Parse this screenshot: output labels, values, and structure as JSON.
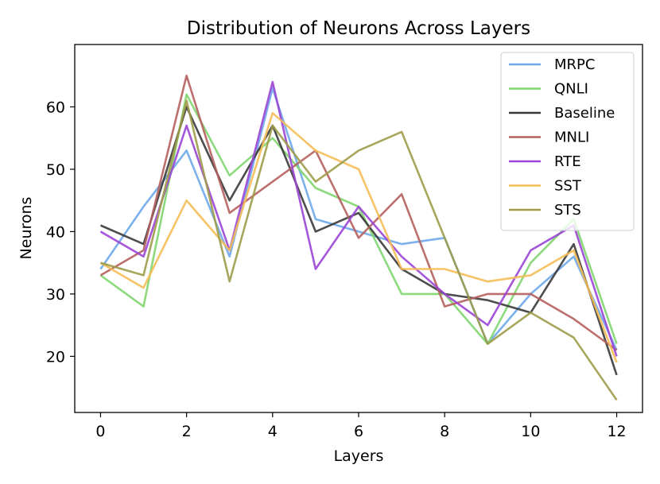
{
  "chart_data": {
    "type": "line",
    "title": "Distribution of Neurons Across Layers",
    "xlabel": "Layers",
    "ylabel": "Neurons",
    "x": [
      0,
      1,
      2,
      3,
      4,
      5,
      6,
      7,
      8,
      9,
      10,
      11,
      12
    ],
    "xlim": [
      -0.6,
      12.6
    ],
    "ylim": [
      11,
      70
    ],
    "xticks": [
      0,
      2,
      4,
      6,
      8,
      10,
      12
    ],
    "yticks": [
      20,
      30,
      40,
      50,
      60
    ],
    "xtick_labels": [
      "0",
      "2",
      "4",
      "6",
      "8",
      "10",
      "12"
    ],
    "ytick_labels": [
      "20",
      "30",
      "40",
      "50",
      "60"
    ],
    "grid": false,
    "legend_position": "top-right",
    "series": [
      {
        "name": "MRPC",
        "color": "#6ea8ea",
        "values": [
          34,
          44,
          53,
          36,
          63,
          42,
          40,
          38,
          39,
          22,
          30,
          36,
          21
        ]
      },
      {
        "name": "QNLI",
        "color": "#7fd66f",
        "values": [
          33,
          28,
          62,
          49,
          55,
          47,
          44,
          30,
          30,
          22,
          35,
          42,
          22
        ]
      },
      {
        "name": "Baseline",
        "color": "#3a3a3a",
        "values": [
          41,
          38,
          60,
          45,
          57,
          40,
          43,
          34,
          30,
          29,
          27,
          38,
          17
        ]
      },
      {
        "name": "MNLI",
        "color": "#b5605e",
        "values": [
          33,
          37,
          65,
          43,
          48,
          53,
          39,
          46,
          28,
          30,
          30,
          26,
          21
        ]
      },
      {
        "name": "RTE",
        "color": "#9b45d6",
        "values": [
          40,
          36,
          57,
          37,
          64,
          34,
          44,
          36,
          30,
          25,
          37,
          41,
          20
        ]
      },
      {
        "name": "SST",
        "color": "#f5bd55",
        "values": [
          35,
          31,
          45,
          37,
          59,
          53,
          50,
          34,
          34,
          32,
          33,
          37,
          19
        ]
      },
      {
        "name": "STS",
        "color": "#9e9c4a",
        "values": [
          35,
          33,
          61,
          32,
          57,
          48,
          53,
          56,
          39,
          22,
          27,
          23,
          13
        ]
      }
    ]
  }
}
